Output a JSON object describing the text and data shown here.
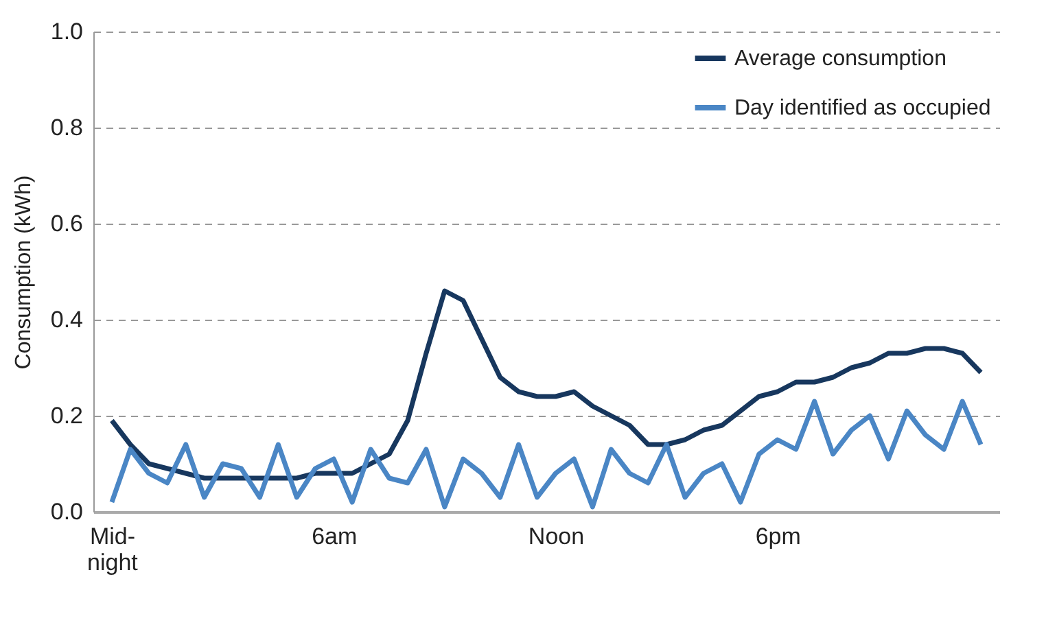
{
  "chart_data": {
    "type": "line",
    "ylabel": "Consumption (kWh)",
    "categories": [
      "Mid-night",
      null,
      null,
      null,
      null,
      null,
      null,
      null,
      null,
      null,
      null,
      null,
      "6am",
      null,
      null,
      null,
      null,
      null,
      null,
      null,
      null,
      null,
      null,
      null,
      "Noon",
      null,
      null,
      null,
      null,
      null,
      null,
      null,
      null,
      null,
      null,
      null,
      "6pm",
      null,
      null,
      null,
      null,
      null,
      null,
      null,
      null,
      null,
      null,
      null
    ],
    "series": [
      {
        "name": "Average consumption",
        "color": "#17375e",
        "values": [
          0.19,
          0.14,
          0.1,
          0.09,
          0.08,
          0.07,
          0.07,
          0.07,
          0.07,
          0.07,
          0.07,
          0.08,
          0.08,
          0.08,
          0.1,
          0.12,
          0.19,
          0.33,
          0.46,
          0.44,
          0.36,
          0.28,
          0.25,
          0.24,
          0.24,
          0.25,
          0.22,
          0.2,
          0.18,
          0.14,
          0.14,
          0.15,
          0.17,
          0.18,
          0.21,
          0.24,
          0.25,
          0.27,
          0.27,
          0.28,
          0.3,
          0.31,
          0.33,
          0.33,
          0.34,
          0.34,
          0.33,
          0.29
        ]
      },
      {
        "name": "Day identified as occupied",
        "color": "#4a86c5",
        "values": [
          0.02,
          0.13,
          0.08,
          0.06,
          0.14,
          0.03,
          0.1,
          0.09,
          0.03,
          0.14,
          0.03,
          0.09,
          0.11,
          0.02,
          0.13,
          0.07,
          0.06,
          0.13,
          0.01,
          0.11,
          0.08,
          0.03,
          0.14,
          0.03,
          0.08,
          0.11,
          0.01,
          0.13,
          0.08,
          0.06,
          0.14,
          0.03,
          0.08,
          0.1,
          0.02,
          0.12,
          0.15,
          0.13,
          0.23,
          0.12,
          0.17,
          0.2,
          0.11,
          0.21,
          0.16,
          0.13,
          0.23,
          0.14
        ]
      }
    ],
    "ylim": [
      0,
      1
    ],
    "yticks": [
      {
        "value": 0,
        "label": "0.0"
      },
      {
        "value": 0.2,
        "label": "0.2"
      },
      {
        "value": 0.4,
        "label": "0.4"
      },
      {
        "value": 0.6,
        "label": "0.6"
      },
      {
        "value": 0.8,
        "label": "0.8"
      },
      {
        "value": 1,
        "label": "1.0"
      }
    ],
    "grid": "y",
    "legend": "top right",
    "marker": "none",
    "line_style": "solid"
  }
}
